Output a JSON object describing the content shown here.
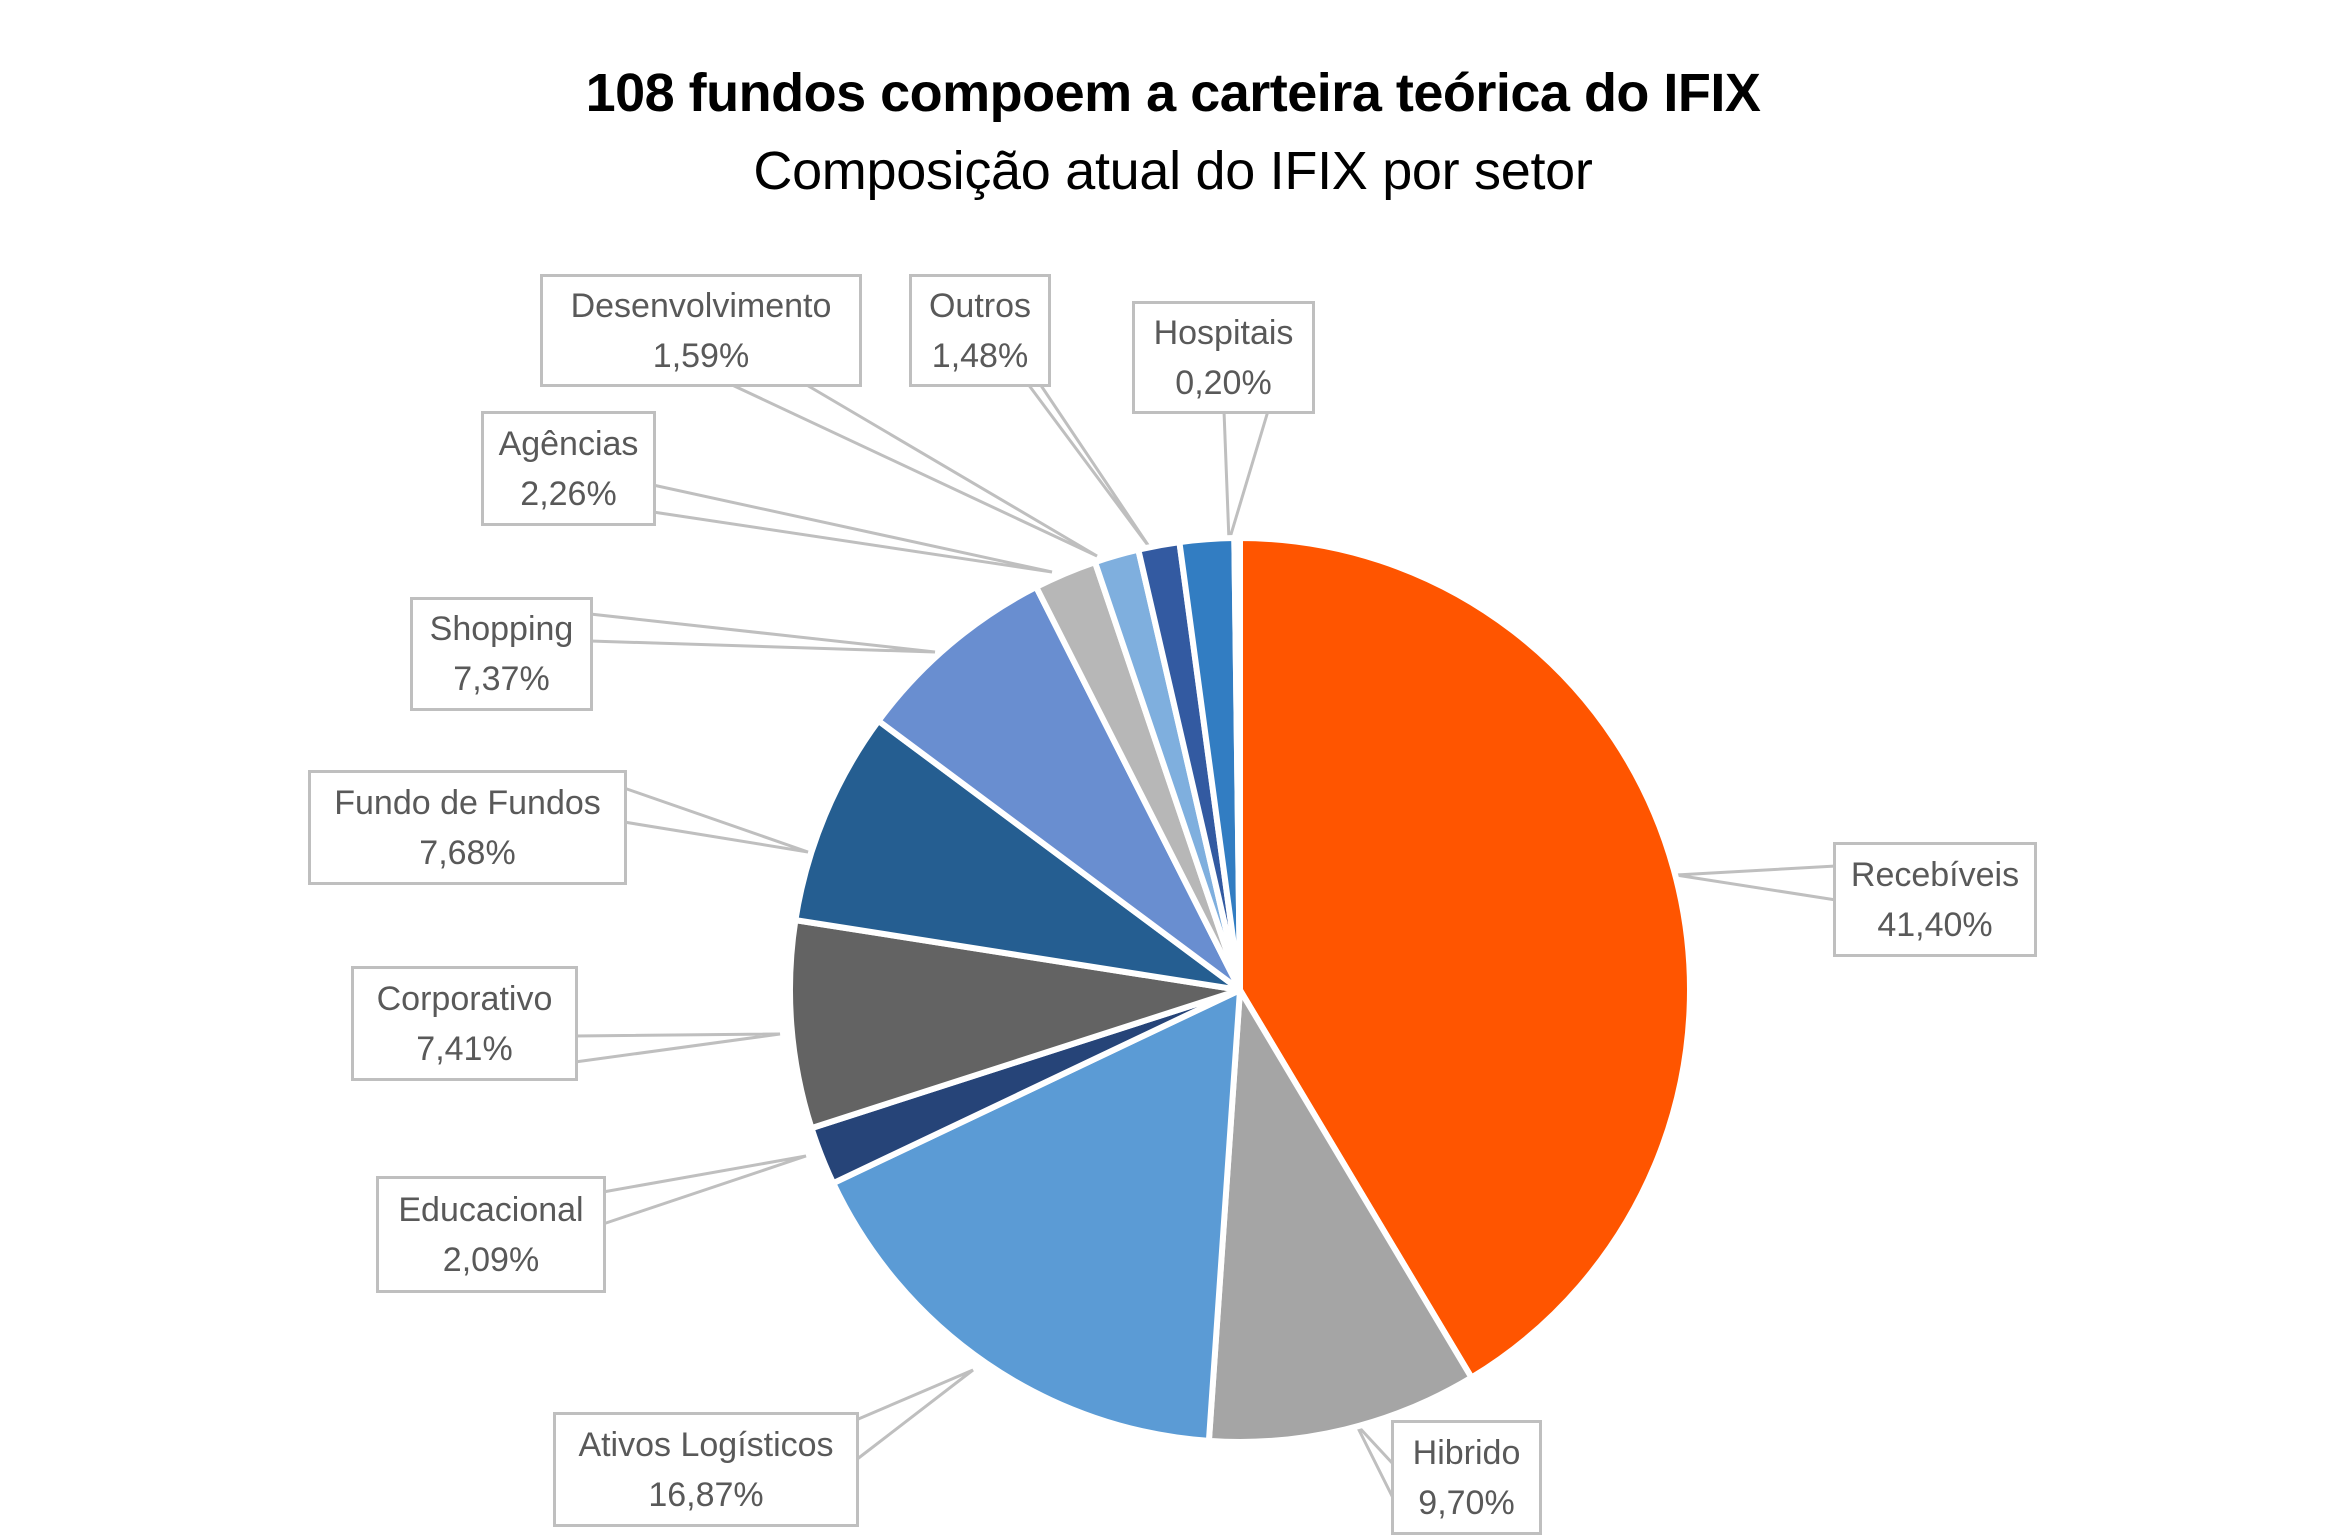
{
  "title": "108 fundos compoem a carteira teórica do IFIX",
  "subtitle": "Composição atual do IFIX por setor",
  "chart_data": {
    "type": "pie",
    "title": "108 fundos compoem a carteira teórica do IFIX",
    "subtitle": "Composição atual do IFIX por setor",
    "start_angle": "12 o'clock, clockwise",
    "legend": "none (data callout labels)",
    "categories": [
      "Recebíveis",
      "Hibrido",
      "Ativos Logísticos",
      "Educacional",
      "Corporativo",
      "Fundo de Fundos",
      "Shopping",
      "Agências",
      "Desenvolvimento",
      "Outros",
      "",
      "Hospitais"
    ],
    "values": [
      41.4,
      9.7,
      16.87,
      2.09,
      7.41,
      7.68,
      7.37,
      2.26,
      1.59,
      1.48,
      1.95,
      0.2
    ],
    "labels": [
      "41,40%",
      "9,70%",
      "16,87%",
      "2,09%",
      "7,41%",
      "7,68%",
      "7,37%",
      "2,26%",
      "1,59%",
      "1,48%",
      "",
      "0,20%"
    ],
    "colors": [
      "#ff5500",
      "#a5a5a5",
      "#5b9bd5",
      "#264478",
      "#636363",
      "#255e91",
      "#698ed0",
      "#b7b7b7",
      "#7fafde",
      "#335aa1",
      "#327dc2",
      "#5b9bd5"
    ]
  },
  "callouts": {
    "recebiveis": {
      "name": "Recebíveis",
      "value": "41,40%"
    },
    "hibrido": {
      "name": "Hibrido",
      "value": "9,70%"
    },
    "logisticos": {
      "name": "Ativos Logísticos",
      "value": "16,87%"
    },
    "educacional": {
      "name": "Educacional",
      "value": "2,09%"
    },
    "corporativo": {
      "name": "Corporativo",
      "value": "7,41%"
    },
    "fof": {
      "name": "Fundo de Fundos",
      "value": "7,68%"
    },
    "shopping": {
      "name": "Shopping",
      "value": "7,37%"
    },
    "agencias": {
      "name": "Agências",
      "value": "2,26%"
    },
    "desenvolvimento": {
      "name": "Desenvolvimento",
      "value": "1,59%"
    },
    "outros": {
      "name": "Outros",
      "value": "1,48%"
    },
    "hospitais": {
      "name": "Hospitais",
      "value": "0,20%"
    }
  }
}
